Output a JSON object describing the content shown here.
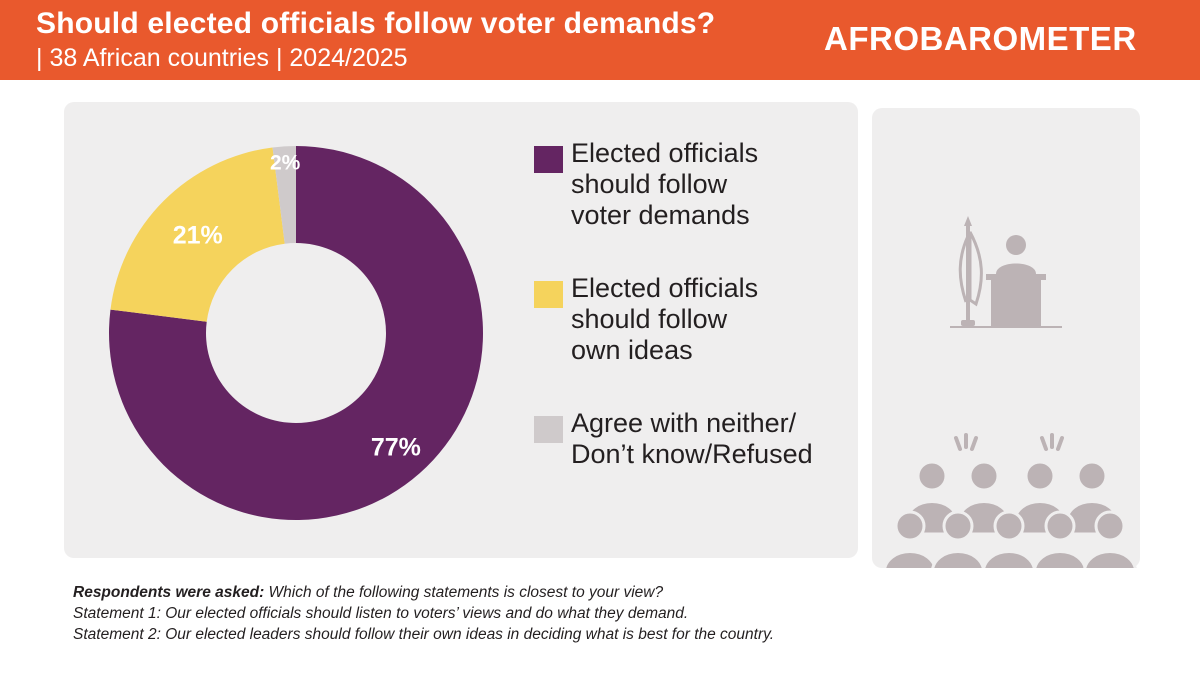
{
  "header": {
    "title": "Should elected officials follow voter demands?",
    "subtitle": "| 38 African countries | 2024/2025",
    "logo_text": "AFROBAROMETER"
  },
  "chart_data": {
    "type": "pie",
    "donut": true,
    "title": "Should elected officials follow voter demands?",
    "subtitle": "| 38 African countries | 2024/2025",
    "categories": [
      "Elected officials should follow voter demands",
      "Elected officials should follow own ideas",
      "Agree with neither/ Don’t know/Refused"
    ],
    "values": [
      77,
      21,
      2
    ],
    "data_labels": [
      "77%",
      "21%",
      "2%"
    ],
    "colors": [
      "#642562",
      "#f5d35c",
      "#cfcacb"
    ],
    "legend_position": "right"
  },
  "legend": [
    {
      "label": "Elected officials\nshould follow\nvoter demands",
      "color": "#642562"
    },
    {
      "label": "Elected officials\nshould follow\nown ideas",
      "color": "#f5d35c"
    },
    {
      "label": "Agree with neither/\nDon’t know/Refused",
      "color": "#cfcacb"
    }
  ],
  "footnote": {
    "lead": "Respondents were asked:",
    "question": " Which of the following statements is closest to your view?",
    "statement1": "Statement 1: Our elected officials should listen to voters’ views and do what they demand.",
    "statement2": "Statement 2: Our elected leaders should follow their own ideas in deciding what is best for the country."
  },
  "illustration": {
    "icons": [
      "official-at-podium-icon",
      "voters-crowd-icon"
    ],
    "color": "#bcb3b5"
  },
  "colors": {
    "header_bg": "#e9592d",
    "panel_bg": "#efeeee"
  }
}
